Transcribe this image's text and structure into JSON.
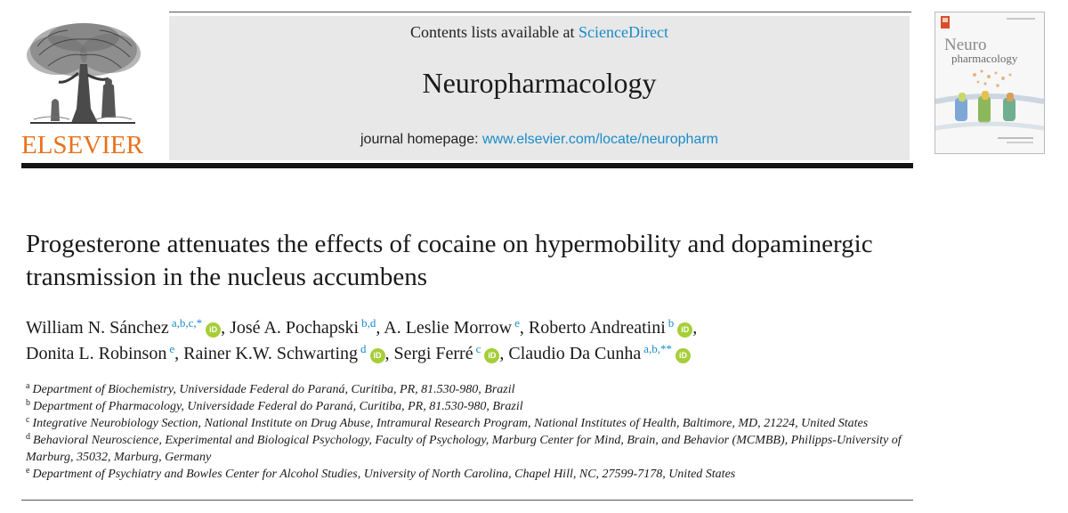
{
  "publisher": {
    "name": "ELSEVIER"
  },
  "masthead": {
    "contents_prefix": "Contents lists available at ",
    "contents_link": "ScienceDirect",
    "journal_title": "Neuropharmacology",
    "homepage_prefix": "journal homepage: ",
    "homepage_link": "www.elsevier.com/locate/neuropharm"
  },
  "cover": {
    "title_line1": "Neuro",
    "title_line2": "pharmacology",
    "colors": {
      "bg": "#f7f7f7",
      "title": "#8a8a8a",
      "accent": "#d94e2a"
    }
  },
  "article": {
    "title": "Progesterone attenuates the effects of cocaine on hypermobility and dopaminergic transmission in the nucleus accumbens",
    "authors": [
      {
        "name": "William N. Sánchez",
        "sup": "a,b,c,*",
        "orcid": true,
        "sep": ", "
      },
      {
        "name": "José A. Pochapski",
        "sup": "b,d",
        "orcid": false,
        "sep": ", "
      },
      {
        "name": "A. Leslie Morrow",
        "sup": "e",
        "orcid": false,
        "sep": ", "
      },
      {
        "name": "Roberto Andreatini",
        "sup": "b",
        "orcid": true,
        "sep": ","
      },
      {
        "name": "Donita L. Robinson",
        "sup": "e",
        "orcid": false,
        "sep": ", "
      },
      {
        "name": "Rainer K.W. Schwarting",
        "sup": "d",
        "orcid": true,
        "sep": ", "
      },
      {
        "name": "Sergi Ferré",
        "sup": "c",
        "orcid": true,
        "sep": ", "
      },
      {
        "name": "Claudio Da Cunha",
        "sup": "a,b,**",
        "orcid": true,
        "sep": ""
      }
    ],
    "orcid_label": "iD",
    "affiliations": [
      {
        "key": "a",
        "text": "Department of Biochemistry, Universidade Federal do Paraná, Curitiba, PR, 81.530-980, Brazil"
      },
      {
        "key": "b",
        "text": "Department of Pharmacology, Universidade Federal do Paraná, Curitiba, PR, 81.530-980, Brazil"
      },
      {
        "key": "c",
        "text": "Integrative Neurobiology Section, National Institute on Drug Abuse, Intramural Research Program, National Institutes of Health, Baltimore, MD, 21224, United States"
      },
      {
        "key": "d",
        "text": "Behavioral Neuroscience, Experimental and Biological Psychology, Faculty of Psychology, Marburg Center for Mind, Brain, and Behavior (MCMBB), Philipps-University of Marburg, 35032, Marburg, Germany"
      },
      {
        "key": "e",
        "text": "Department of Psychiatry and Bowles Center for Alcohol Studies, University of North Carolina, Chapel Hill, NC, 27599-7178, United States"
      }
    ]
  },
  "colors": {
    "link": "#1a8bc8",
    "logo": "#e9711c",
    "orcid": "#a6ce39",
    "masthead_bg": "#e8e8e8"
  }
}
